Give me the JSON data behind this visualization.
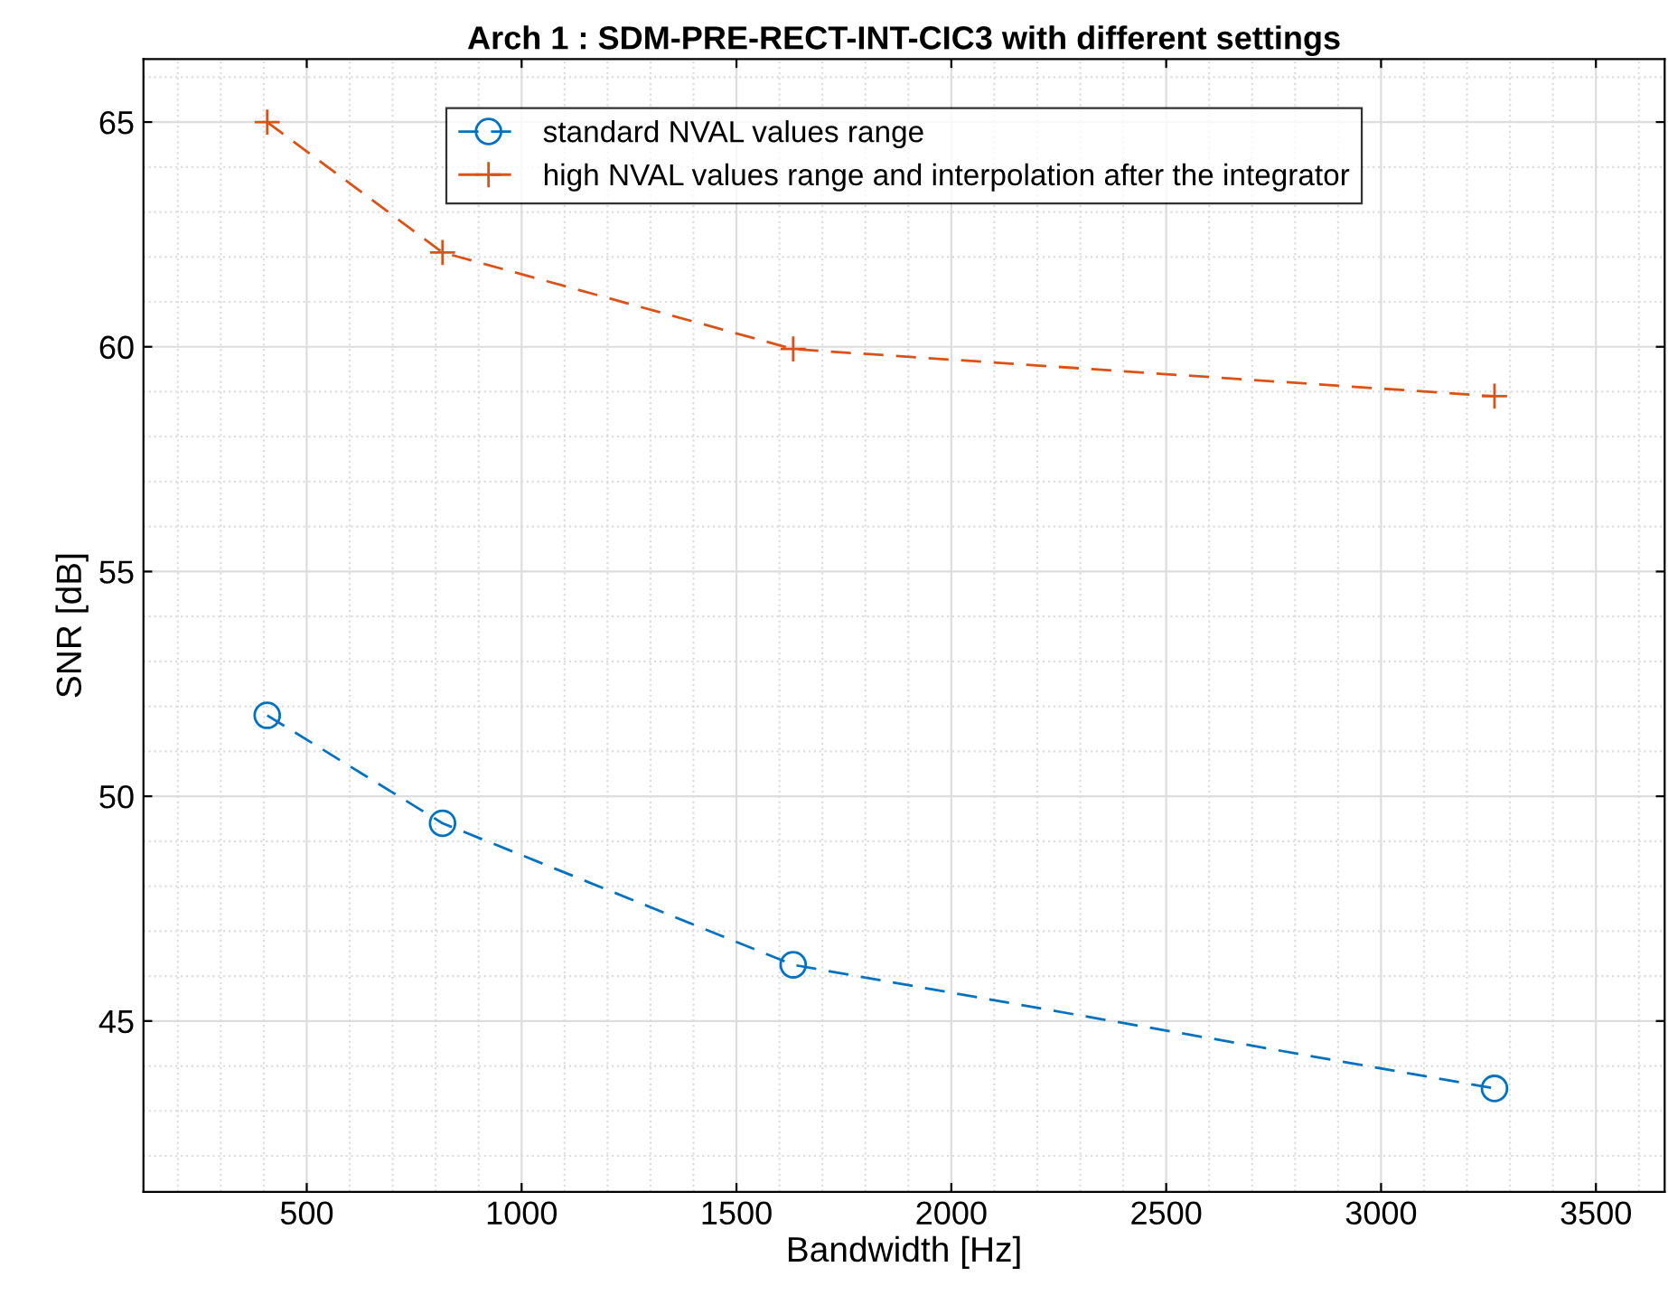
{
  "chart_data": {
    "type": "line",
    "title": "Arch 1 : SDM-PRE-RECT-INT-CIC3 with different settings",
    "xlabel": "Bandwidth [Hz]",
    "ylabel": "SNR [dB]",
    "x": [
      408,
      816,
      1632,
      3264
    ],
    "series": [
      {
        "name": "standard NVAL values range",
        "color": "#0072bd",
        "marker": "circle",
        "values": [
          51.8,
          49.4,
          46.25,
          43.5
        ]
      },
      {
        "name": "high NVAL values range and interpolation after the integrator",
        "color": "#d95319",
        "marker": "cross",
        "values": [
          65.0,
          62.1,
          59.95,
          58.9
        ]
      }
    ],
    "line_style": "dashed",
    "xlim": [
      120,
      3660
    ],
    "ylim": [
      41.2,
      66.4
    ],
    "xticks": [
      500,
      1000,
      1500,
      2000,
      2500,
      3000,
      3500
    ],
    "yticks": [
      45,
      50,
      55,
      60,
      65
    ],
    "grid": true,
    "legend": "top"
  }
}
